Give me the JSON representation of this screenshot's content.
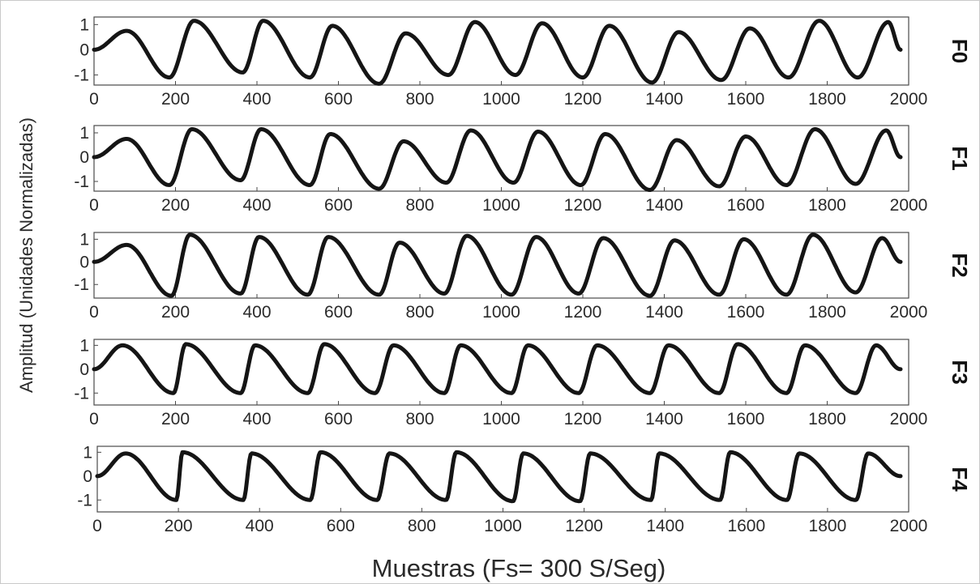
{
  "chart_data": {
    "type": "line",
    "layout": "stacked-subplots",
    "xlabel": "Muestras (Fs= 300 S/Seg)",
    "ylabel": "Amplitud (Unidades Normalizadas)",
    "xlim": [
      0,
      2000
    ],
    "x_ticks": [
      "0",
      "200",
      "400",
      "600",
      "800",
      "1000",
      "1200",
      "1400",
      "1600",
      "1800",
      "2000"
    ],
    "line_color": "#151515",
    "subplots": [
      {
        "name": "F0",
        "ylim": [
          -1.4,
          1.3
        ],
        "y_ticks": [
          "1",
          "0",
          "-1"
        ],
        "peaks_x": [
          80,
          245,
          415,
          585,
          765,
          935,
          1100,
          1265,
          1435,
          1610,
          1780,
          1950
        ],
        "troughs_x": [
          185,
          365,
          530,
          700,
          870,
          1035,
          1200,
          1370,
          1540,
          1705,
          1875
        ],
        "peak_amplitudes": [
          0.75,
          1.15,
          1.15,
          0.95,
          0.65,
          1.1,
          1.05,
          0.95,
          0.7,
          0.85,
          1.15,
          1.1
        ],
        "trough_amplitudes": [
          -1.1,
          -0.9,
          -1.1,
          -1.35,
          -1.0,
          -1.0,
          -1.1,
          -1.3,
          -1.2,
          -1.1,
          -1.1
        ]
      },
      {
        "name": "F1",
        "ylim": [
          -1.4,
          1.3
        ],
        "y_ticks": [
          "1",
          "0",
          "-1"
        ],
        "peaks_x": [
          80,
          240,
          410,
          580,
          760,
          925,
          1090,
          1255,
          1430,
          1600,
          1770,
          1945
        ],
        "troughs_x": [
          185,
          360,
          530,
          700,
          865,
          1030,
          1195,
          1365,
          1535,
          1700,
          1870
        ],
        "peak_amplitudes": [
          0.75,
          1.15,
          1.15,
          0.95,
          0.65,
          1.1,
          1.05,
          0.95,
          0.7,
          0.85,
          1.15,
          1.1
        ],
        "trough_amplitudes": [
          -1.15,
          -0.95,
          -1.15,
          -1.3,
          -1.05,
          -1.05,
          -1.15,
          -1.35,
          -1.2,
          -1.15,
          -1.1
        ]
      },
      {
        "name": "F2",
        "ylim": [
          -1.6,
          1.3
        ],
        "y_ticks": [
          "1",
          "0",
          "-1"
        ],
        "peaks_x": [
          80,
          235,
          405,
          575,
          750,
          915,
          1085,
          1250,
          1425,
          1595,
          1765,
          1935
        ],
        "troughs_x": [
          190,
          360,
          525,
          700,
          860,
          1025,
          1190,
          1365,
          1535,
          1700,
          1870
        ],
        "peak_amplitudes": [
          0.75,
          1.2,
          1.1,
          1.1,
          0.85,
          1.15,
          1.1,
          1.05,
          0.95,
          1.0,
          1.2,
          1.05
        ],
        "trough_amplitudes": [
          -1.5,
          -1.4,
          -1.45,
          -1.45,
          -1.4,
          -1.45,
          -1.4,
          -1.5,
          -1.45,
          -1.45,
          -1.35
        ]
      },
      {
        "name": "F3",
        "ylim": [
          -1.5,
          1.25
        ],
        "y_ticks": [
          "1",
          "0",
          "-1"
        ],
        "peaks_x": [
          70,
          225,
          395,
          565,
          735,
          900,
          1065,
          1235,
          1410,
          1580,
          1745,
          1920
        ],
        "troughs_x": [
          195,
          360,
          525,
          690,
          860,
          1025,
          1190,
          1365,
          1535,
          1700,
          1870
        ],
        "peak_amplitudes": [
          1.0,
          1.05,
          1.0,
          1.05,
          1.0,
          1.0,
          1.0,
          1.0,
          1.0,
          1.05,
          1.0,
          1.0
        ],
        "trough_amplitudes": [
          -1.0,
          -1.0,
          -1.0,
          -1.0,
          -1.0,
          -1.0,
          -1.0,
          -1.0,
          -1.0,
          -1.0,
          -1.0
        ]
      },
      {
        "name": "F4",
        "ylim": [
          -1.5,
          1.25
        ],
        "y_ticks": [
          "1",
          "0",
          "-1"
        ],
        "peaks_x": [
          70,
          210,
          380,
          550,
          720,
          885,
          1050,
          1215,
          1385,
          1560,
          1730,
          1900
        ],
        "troughs_x": [
          195,
          360,
          525,
          690,
          860,
          1025,
          1190,
          1365,
          1535,
          1700,
          1870
        ],
        "peak_amplitudes": [
          0.95,
          1.0,
          0.95,
          1.0,
          0.95,
          1.0,
          0.95,
          0.95,
          0.95,
          1.0,
          0.95,
          0.95
        ],
        "trough_amplitudes": [
          -1.0,
          -1.0,
          -1.0,
          -1.0,
          -1.0,
          -1.05,
          -1.05,
          -1.0,
          -1.0,
          -1.0,
          -1.0
        ]
      }
    ]
  }
}
